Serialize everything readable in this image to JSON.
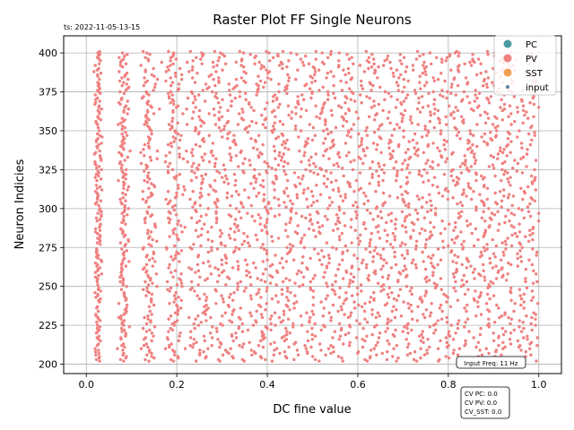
{
  "timestamp": "ts: 2022-11-05-13-15",
  "chart_data": {
    "type": "scatter",
    "title": "Raster Plot FF Single Neurons",
    "xlabel": "DC fine value",
    "ylabel": "Neuron Indicies",
    "xlim": [
      -0.05,
      1.05
    ],
    "ylim": [
      194,
      411
    ],
    "xticks": [
      0.0,
      0.2,
      0.4,
      0.6,
      0.8,
      1.0
    ],
    "xtick_labels": [
      "0.0",
      "0.2",
      "0.4",
      "0.6",
      "0.8",
      "1.0"
    ],
    "yticks": [
      200,
      225,
      250,
      275,
      300,
      325,
      350,
      375,
      400
    ],
    "ytick_labels": [
      "200",
      "225",
      "250",
      "275",
      "300",
      "325",
      "350",
      "375",
      "400"
    ],
    "grid": true,
    "legend_position": "top-right",
    "series": [
      {
        "name": "PC",
        "color": "#4c9aa0",
        "points": []
      },
      {
        "name": "PV",
        "color": "#f08080",
        "generator": "raster",
        "x_range": [
          0.0,
          1.0
        ],
        "y_range": [
          202,
          401
        ]
      },
      {
        "name": "SST",
        "color": "#f0a050",
        "points": []
      },
      {
        "name": "input",
        "color": "#6080a0",
        "points": []
      }
    ],
    "annotations": {
      "input_freq": "Input Freq: 11 Hz",
      "cv_lines": [
        "CV PC: 0.0",
        "CV PV: 0.0",
        "CV_SST: 0.0"
      ]
    }
  }
}
